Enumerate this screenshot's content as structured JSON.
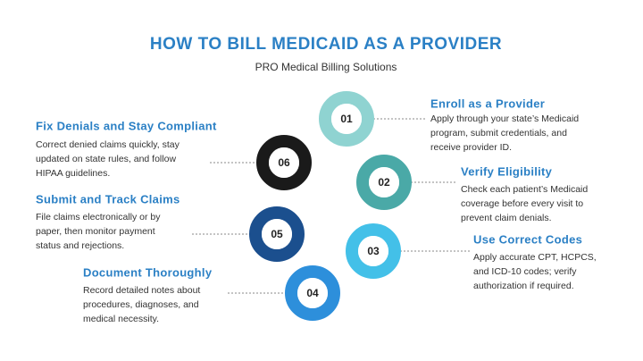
{
  "header": {
    "title": "HOW TO BILL MEDICAID AS A PROVIDER",
    "subtitle": "PRO Medical Billing Solutions"
  },
  "steps": [
    {
      "number": "01",
      "title": "Enroll as a Provider",
      "body": [
        "Apply through your state’s Medicaid",
        "program, submit credentials, and",
        "receive provider ID."
      ]
    },
    {
      "number": "02",
      "title": "Verify Eligibility",
      "body": [
        "Check each patient’s Medicaid",
        "coverage before every visit to",
        "prevent claim denials."
      ]
    },
    {
      "number": "03",
      "title": "Use Correct Codes",
      "body": [
        "Apply accurate CPT, HCPCS,",
        "and ICD-10 codes; verify",
        "authorization if required."
      ]
    },
    {
      "number": "04",
      "title": "Document Thoroughly",
      "body": [
        "Record detailed notes about",
        "procedures, diagnoses, and",
        "medical necessity."
      ]
    },
    {
      "number": "05",
      "title": "Submit and Track Claims",
      "body": [
        "File claims electronically or by",
        "paper, then monitor payment",
        "status and rejections."
      ]
    },
    {
      "number": "06",
      "title": "Fix Denials and Stay Compliant",
      "body": [
        "Correct denied claims quickly, stay",
        "updated on state rules, and follow",
        "HIPAA guidelines."
      ]
    }
  ]
}
